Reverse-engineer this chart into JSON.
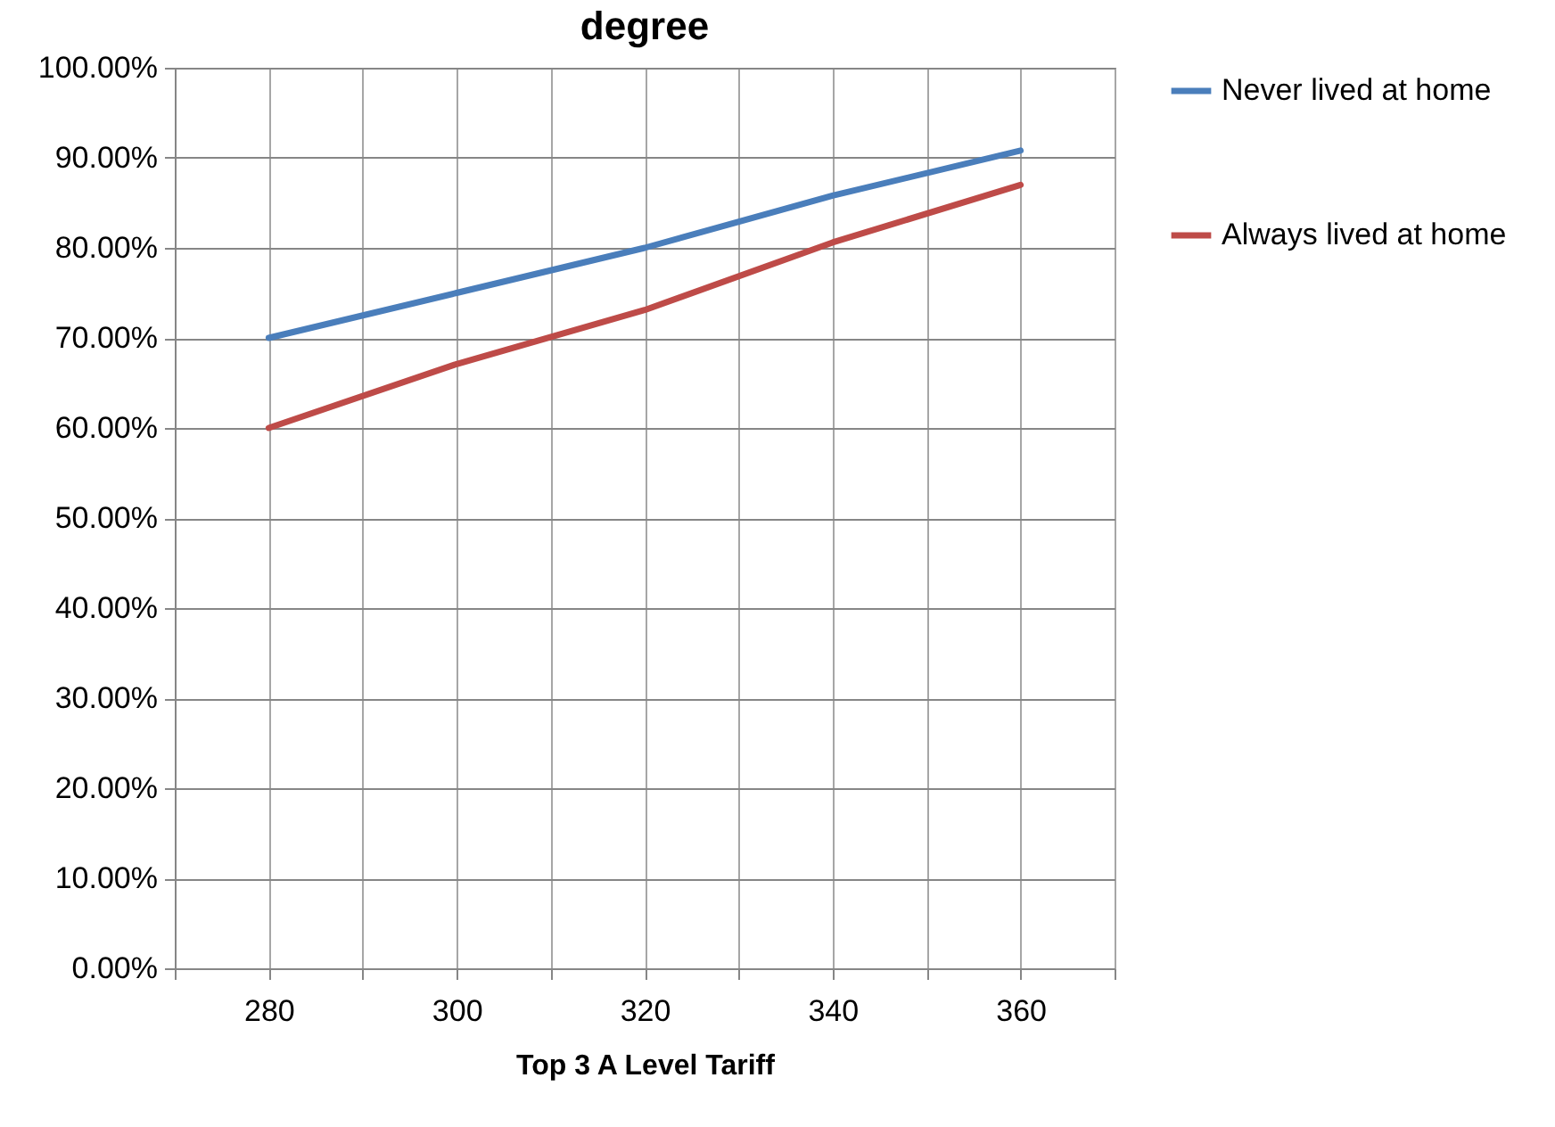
{
  "chart_data": {
    "type": "line",
    "title": "degree",
    "xlabel": "Top 3 A Level Tariff",
    "x": [
      280,
      300,
      320,
      340,
      360
    ],
    "series": [
      {
        "name": "Never lived at home",
        "color": "#4a7ebb",
        "values": [
          70,
          75,
          80,
          85.8,
          90.8
        ]
      },
      {
        "name": "Always lived at home",
        "color": "#be4b48",
        "values": [
          60,
          67.1,
          73.1,
          80.6,
          87
        ]
      }
    ],
    "xlim": [
      270,
      370
    ],
    "xticks": [
      {
        "value": 270,
        "label": null
      },
      280,
      {
        "value": 290,
        "label": null
      },
      300,
      {
        "value": 310,
        "label": null
      },
      320,
      {
        "value": 330,
        "label": null
      },
      340,
      {
        "value": 350,
        "label": null
      },
      360,
      {
        "value": 370,
        "label": null
      }
    ],
    "ylim": [
      0,
      100
    ],
    "yticks": [
      {
        "value": 0,
        "label": "0.00%"
      },
      {
        "value": 10,
        "label": "10.00%"
      },
      {
        "value": 20,
        "label": "20.00%"
      },
      {
        "value": 30,
        "label": "30.00%"
      },
      {
        "value": 40,
        "label": "40.00%"
      },
      {
        "value": 50,
        "label": "50.00%"
      },
      {
        "value": 60,
        "label": "60.00%"
      },
      {
        "value": 70,
        "label": "70.00%"
      },
      {
        "value": 80,
        "label": "80.00%"
      },
      {
        "value": 90,
        "label": "90.00%"
      },
      {
        "value": 100,
        "label": "100.00%"
      }
    ],
    "grid": true,
    "legend": "right",
    "marker": "none",
    "line_style": "solid"
  }
}
